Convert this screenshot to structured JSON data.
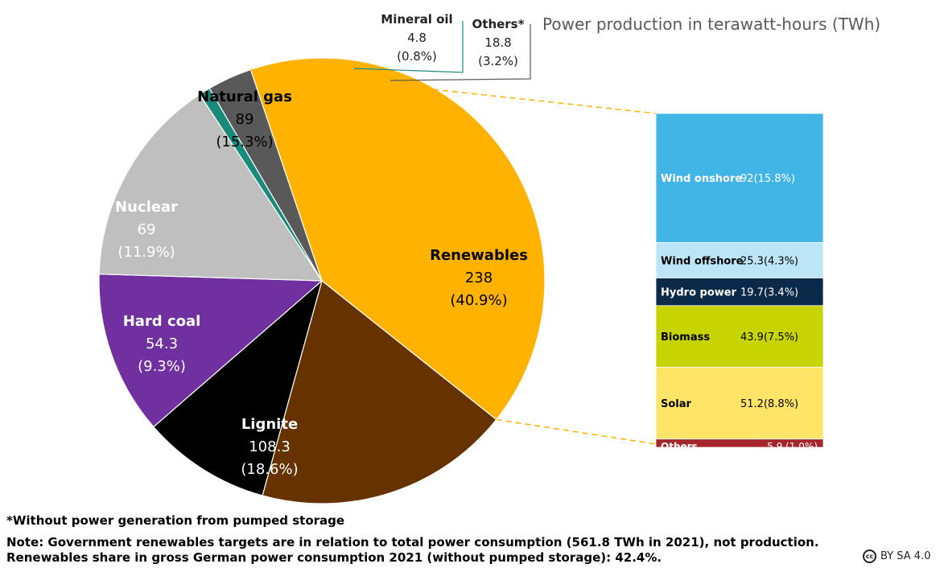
{
  "chart_data": {
    "type": "pie",
    "title": "Power production in terawatt-hours (TWh)",
    "unit": "TWh",
    "slices": [
      {
        "name": "Renewables",
        "value": 238,
        "pct": "40.9%",
        "color": "#FFB300",
        "value_label": "238",
        "pct_label": "(40.9%)"
      },
      {
        "name": "Lignite",
        "value": 108.3,
        "pct": "18.6%",
        "color": "#663300",
        "value_label": "108.3",
        "pct_label": "(18.6%)"
      },
      {
        "name": "Hard coal",
        "value": 54.3,
        "pct": "9.3%",
        "color": "#000000",
        "value_label": "54.3",
        "pct_label": "(9.3%)"
      },
      {
        "name": "Nuclear",
        "value": 69,
        "pct": "11.9%",
        "color": "#7030A0",
        "value_label": "69",
        "pct_label": "(11.9%)"
      },
      {
        "name": "Natural gas",
        "value": 89,
        "pct": "15.3%",
        "color": "#BFBFBF",
        "value_label": "89",
        "pct_label": "(15.3%)"
      },
      {
        "name": "Mineral oil",
        "value": 4.8,
        "pct": "0.8%",
        "color": "#1A8A7A",
        "value_label": "4.8",
        "pct_label": "(0.8%)"
      },
      {
        "name": "Others*",
        "value": 18.8,
        "pct": "3.2%",
        "color": "#595959",
        "value_label": "18.8",
        "pct_label": "(3.2%)"
      }
    ],
    "breakdown": {
      "parent": "Renewables",
      "type": "stacked-bar",
      "items": [
        {
          "name": "Wind onshore",
          "value": 92,
          "pct": "15.8%",
          "label": "92(15.8%)",
          "color": "#41B6E6"
        },
        {
          "name": "Wind offshore",
          "value": 25.3,
          "pct": "4.3%",
          "label": "25.3(4.3%)",
          "color": "#BDE5F8"
        },
        {
          "name": "Hydro power",
          "value": 19.7,
          "pct": "3.4%",
          "label": "19.7(3.4%)",
          "color": "#0B2A4A"
        },
        {
          "name": "Biomass",
          "value": 43.9,
          "pct": "7.5%",
          "label": "43.9(7.5%)",
          "color": "#C8D400"
        },
        {
          "name": "Solar",
          "value": 51.2,
          "pct": "8.8%",
          "label": "51.2(8.8%)",
          "color": "#FFE566"
        },
        {
          "name": "Others",
          "value": 5.9,
          "pct": "1.0%",
          "label": "5.9 (1.0%)",
          "color": "#A4262C"
        }
      ]
    }
  },
  "footnote": "*Without power generation from pumped storage",
  "notes": [
    "Note: Government renewables targets are in relation to total power consumption (561.8 TWh in 2021), not production.",
    "Renewables share in gross German power consumption 2021 (without pumped storage): 42.4%."
  ],
  "license": {
    "icon": "cc-icon",
    "badge": "cc",
    "text": "BY SA 4.0"
  }
}
